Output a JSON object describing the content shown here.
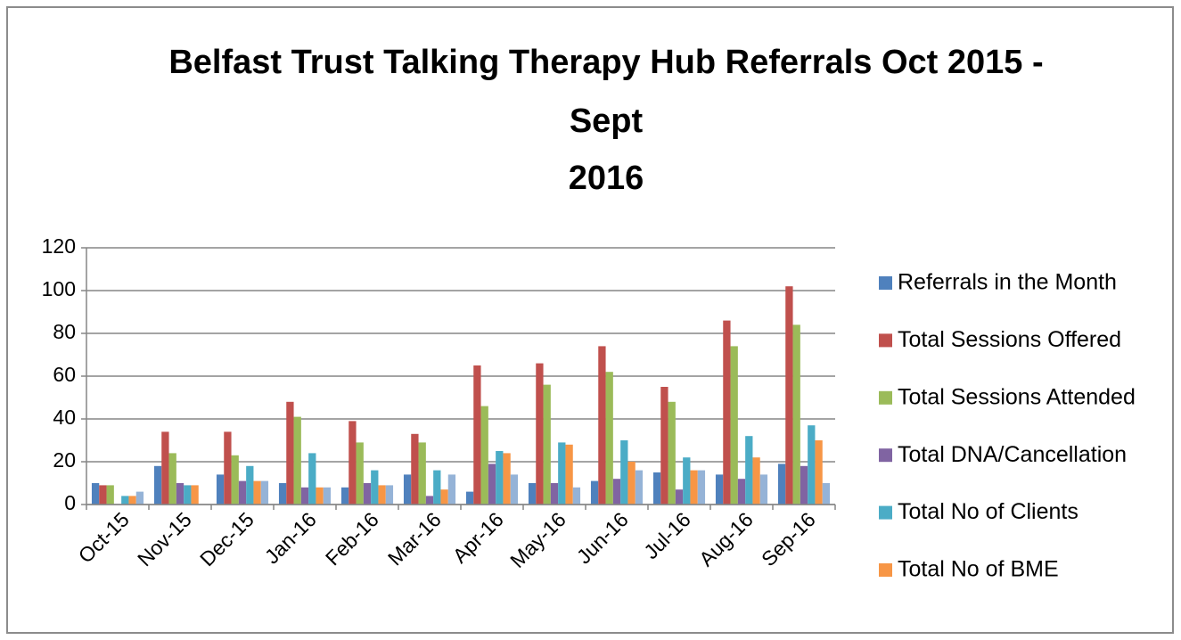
{
  "chart_data": {
    "type": "bar",
    "title": [
      "Belfast Trust Talking Therapy Hub Referrals Oct 2015 -",
      "Sept",
      "2016"
    ],
    "categories": [
      "Oct-15",
      "Nov-15",
      "Dec-15",
      "Jan-16",
      "Feb-16",
      "Mar-16",
      "Apr-16",
      "May-16",
      "Jun-16",
      "Jul-16",
      "Aug-16",
      "Sep-16"
    ],
    "series": [
      {
        "name": "Referrals  in the Month",
        "color": "#4f81bd",
        "values": [
          10,
          18,
          14,
          10,
          8,
          14,
          6,
          10,
          11,
          15,
          14,
          19
        ]
      },
      {
        "name": "Total Sessions Offered",
        "color": "#c0504d",
        "values": [
          9,
          34,
          34,
          48,
          39,
          33,
          65,
          66,
          74,
          55,
          86,
          102
        ]
      },
      {
        "name": "Total Sessions Attended",
        "color": "#9bbb59",
        "values": [
          9,
          24,
          23,
          41,
          29,
          29,
          46,
          56,
          62,
          48,
          74,
          84
        ]
      },
      {
        "name": "Total DNA/Cancellation",
        "color": "#8064a2",
        "values": [
          0,
          10,
          11,
          8,
          10,
          4,
          19,
          10,
          12,
          7,
          12,
          18
        ]
      },
      {
        "name": "Total No of Clients",
        "color": "#4bacc6",
        "values": [
          4,
          9,
          18,
          24,
          16,
          16,
          25,
          29,
          30,
          22,
          32,
          37
        ]
      },
      {
        "name": "Total No of BME",
        "color": "#f79646",
        "values": [
          4,
          9,
          11,
          8,
          9,
          7,
          24,
          28,
          20,
          16,
          22,
          30
        ]
      },
      {
        "color": "#95b3d7",
        "values": [
          6,
          0,
          11,
          8,
          9,
          14,
          14,
          8,
          16,
          16,
          14,
          10
        ]
      }
    ],
    "ylim": [
      0,
      120
    ],
    "yticks": [
      0,
      20,
      40,
      60,
      80,
      100,
      120
    ],
    "grid": true,
    "legend": "right"
  }
}
